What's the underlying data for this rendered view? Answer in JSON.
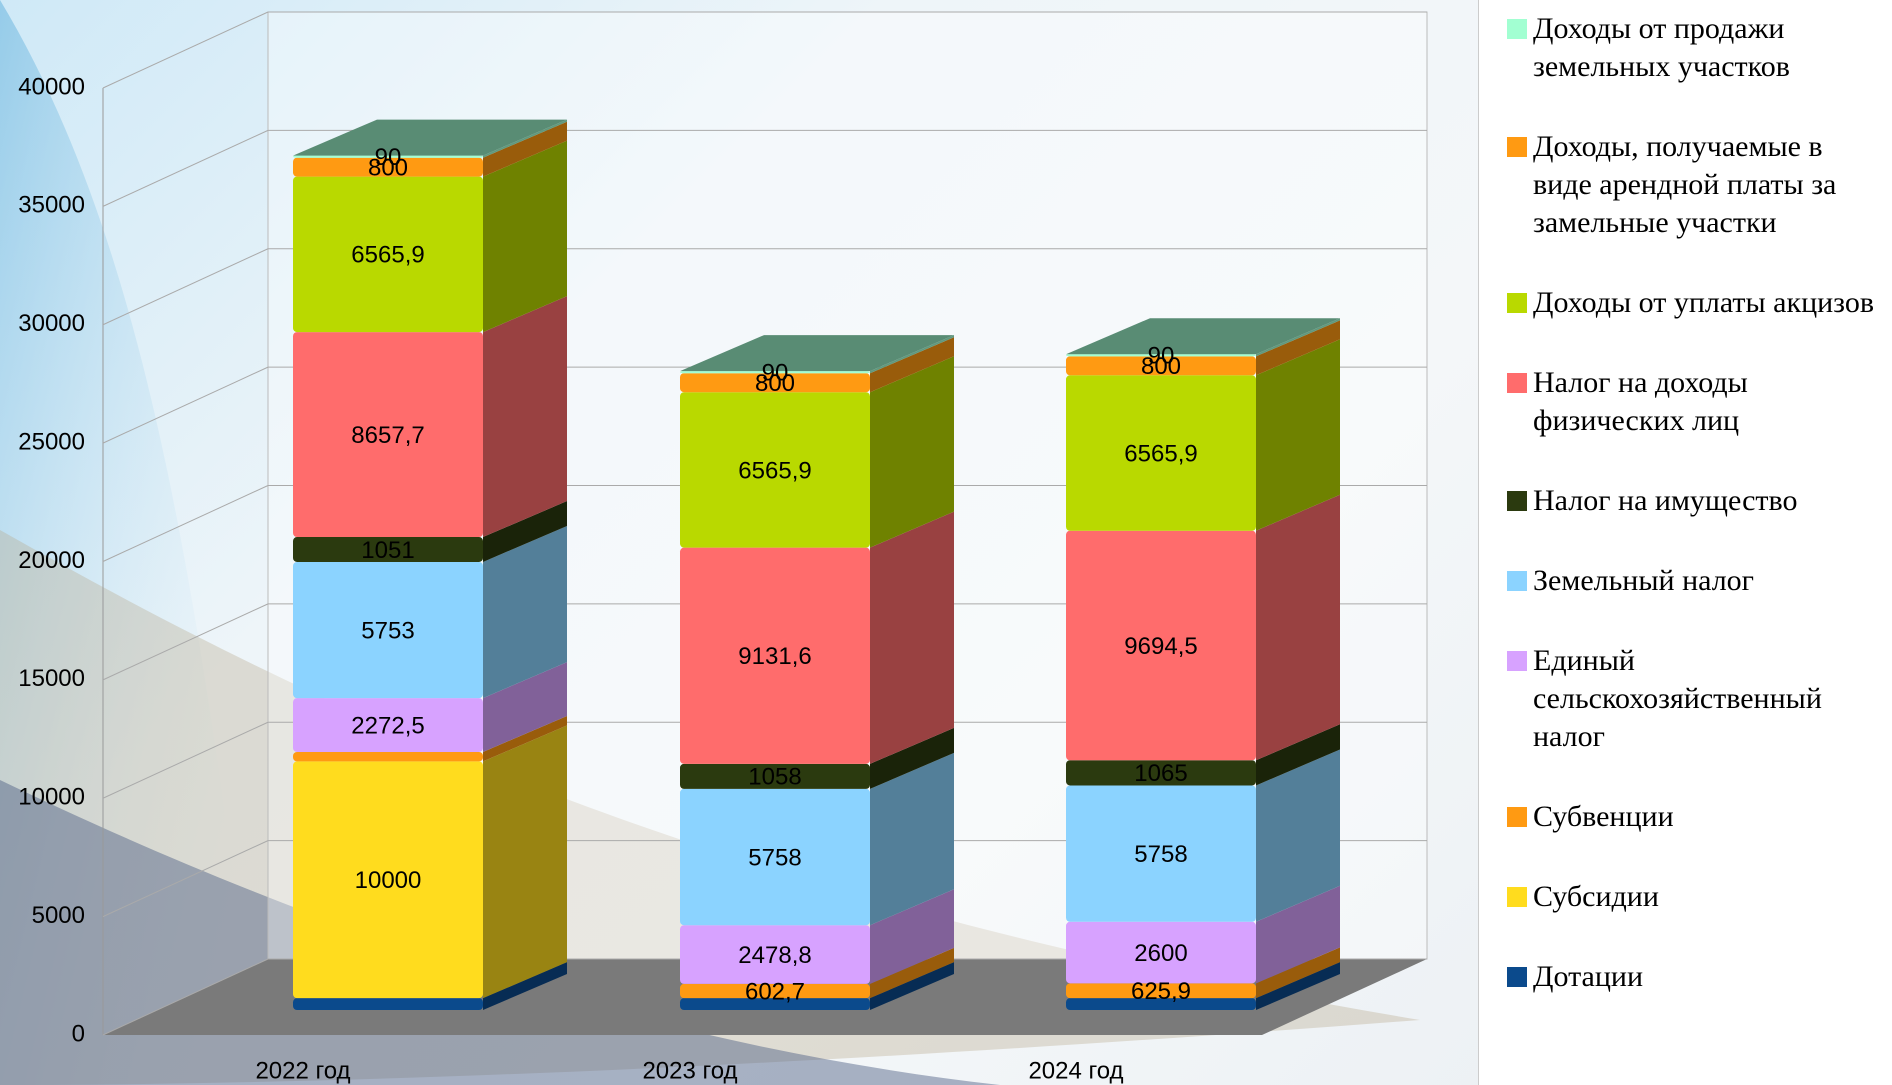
{
  "chart_data": {
    "type": "stacked-bar-3d",
    "categories": [
      "2022 год",
      "2023 год",
      "2024 год"
    ],
    "ylim": [
      0,
      40000
    ],
    "yticks": [
      0,
      5000,
      10000,
      15000,
      20000,
      25000,
      30000,
      35000,
      40000
    ],
    "grid": true,
    "legend": "right",
    "series": [
      {
        "name": "Дотации",
        "color": "#0b4a8c",
        "values": [
          500,
          500,
          500
        ],
        "value_labels": [
          null,
          null,
          null
        ]
      },
      {
        "name": "Субсидии",
        "color": "#ffdc1e",
        "values": [
          10000,
          null,
          null
        ],
        "value_labels": [
          "10000",
          null,
          null
        ]
      },
      {
        "name": "Субвенции",
        "color": "#ff9a12",
        "values": [
          400,
          602.7,
          625.9
        ],
        "value_labels": [
          null,
          "602,7",
          "625,9"
        ]
      },
      {
        "name": "Единый сельскохозяйственный налог",
        "color": "#d7a2ff",
        "values": [
          2272.5,
          2478.8,
          2600
        ],
        "value_labels": [
          "2272,5",
          "2478,8",
          "2600"
        ]
      },
      {
        "name": "Земельный налог",
        "color": "#8bd3ff",
        "values": [
          5753,
          5758,
          5758
        ],
        "value_labels": [
          "5753",
          "5758",
          "5758"
        ]
      },
      {
        "name": "Налог на имущество",
        "color": "#2b3a0f",
        "values": [
          1051,
          1058,
          1065
        ],
        "value_labels": [
          "1051",
          "1058",
          "1065"
        ]
      },
      {
        "name": "Налог на доходы физических лиц",
        "color": "#ff6c6c",
        "values": [
          8657.7,
          9131.6,
          9694.5
        ],
        "value_labels": [
          "8657,7",
          "9131,6",
          "9694,5"
        ]
      },
      {
        "name": "Доходы от уплаты акцизов",
        "color": "#b9d900",
        "values": [
          6565.9,
          6565.9,
          6565.9
        ],
        "value_labels": [
          "6565,9",
          "6565,9",
          "6565,9"
        ]
      },
      {
        "name": "Доходы, получаемые в виде арендной платы за замельные участки",
        "color": "#ff9a12",
        "values": [
          800,
          800,
          800
        ],
        "value_labels": [
          "800",
          "800",
          "800"
        ]
      },
      {
        "name": "Доходы от продажи земельных участков",
        "color": "#a2ffd2",
        "values": [
          90,
          90,
          90
        ],
        "value_labels": [
          "90",
          "90",
          "90"
        ]
      }
    ]
  }
}
